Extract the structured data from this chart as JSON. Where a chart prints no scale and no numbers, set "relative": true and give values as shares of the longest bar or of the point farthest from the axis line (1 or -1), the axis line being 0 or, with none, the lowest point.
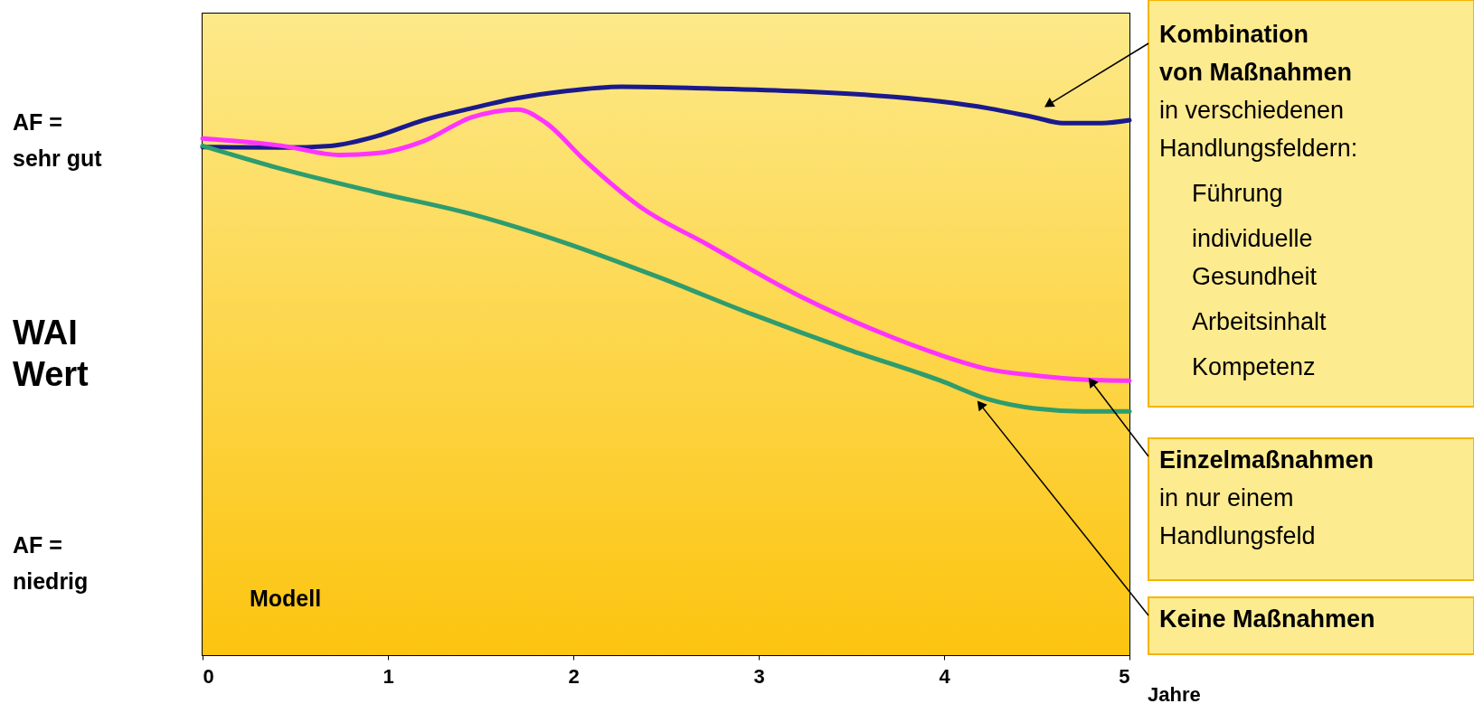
{
  "chart_data": {
    "type": "line",
    "relative": true,
    "ylabel": "WAI Wert",
    "xlabel": "Jahre",
    "xlim": [
      0,
      5
    ],
    "xticks": [
      0,
      1,
      2,
      3,
      4,
      5
    ],
    "grid": false,
    "line_style": "solid",
    "marker": "none",
    "series": [
      {
        "color": "#1a1a8c",
        "x": [
          0,
          0.43,
          0.69,
          0.94,
          1.19,
          1.45,
          1.7,
          1.95,
          2.26,
          2.72,
          3.22,
          3.73,
          3.98,
          4.24,
          4.49,
          4.64,
          4.85,
          5
        ],
        "values": [
          0.894,
          0.893,
          0.896,
          0.913,
          0.941,
          0.962,
          0.98,
          0.992,
          1.0,
          0.997,
          0.992,
          0.982,
          0.974,
          0.962,
          0.946,
          0.936,
          0.936,
          0.941
        ]
      },
      {
        "color": "#ff33ff",
        "x": [
          0,
          0.43,
          0.74,
          0.94,
          1.19,
          1.45,
          1.7,
          1.85,
          2.06,
          2.36,
          2.72,
          3.22,
          3.73,
          3.98,
          4.24,
          4.49,
          4.75,
          5
        ],
        "values": [
          0.909,
          0.896,
          0.88,
          0.883,
          0.904,
          0.946,
          0.96,
          0.937,
          0.871,
          0.789,
          0.723,
          0.632,
          0.558,
          0.528,
          0.503,
          0.492,
          0.485,
          0.483
        ]
      },
      {
        "color": "#2e9c6e",
        "x": [
          0,
          0.43,
          0.94,
          1.45,
          1.95,
          2.46,
          2.97,
          3.48,
          3.98,
          4.24,
          4.49,
          4.75,
          5
        ],
        "values": [
          0.896,
          0.855,
          0.814,
          0.776,
          0.726,
          0.665,
          0.599,
          0.538,
          0.483,
          0.45,
          0.434,
          0.429,
          0.429
        ]
      }
    ],
    "annotations": [
      "AF =\nsehr gut",
      "AF =\nniedrig",
      "Modell",
      {
        "text": "Kombination\nvon Maßnahmen",
        "x": 4.57,
        "y": 0.97
      },
      "in verschiedenen\nHandlungsfeldern:",
      "Führung",
      "individuelle\nGesundheit",
      "Arbeitsinhalt",
      "Kompetenz",
      {
        "text": "Einzelmaßnahmen",
        "x": 4.8,
        "y": 0.479
      },
      "in nur einem\nHandlungsfeld",
      {
        "text": "Keine Maßnahmen",
        "x": 4.2,
        "y": 0.439
      }
    ]
  }
}
